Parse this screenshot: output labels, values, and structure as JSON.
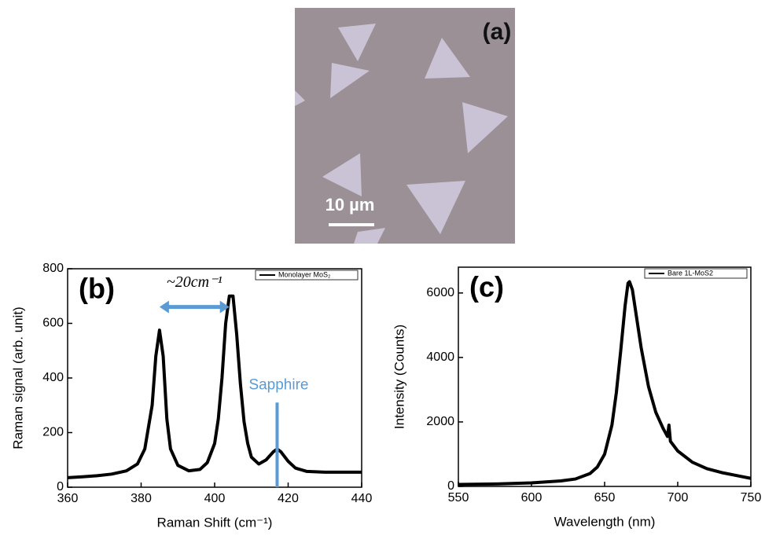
{
  "panel_a": {
    "label": "(a)",
    "scale_bar": "10 µm"
  },
  "chart_data": [
    {
      "type": "line",
      "panel_label": "(b)",
      "x_label": "Raman Shift (cm⁻¹)",
      "y_label": "Raman signal (arb. unit)",
      "xlim": [
        360,
        440
      ],
      "xticks": [
        360,
        380,
        400,
        420,
        440
      ],
      "ylim": [
        0,
        800
      ],
      "yticks": [
        0,
        200,
        400,
        600,
        800
      ],
      "legend": "upper right",
      "series": [
        {
          "name": "Monolayer MoS₂",
          "color": "#000000",
          "x": [
            360,
            364,
            368,
            372,
            376,
            379,
            381,
            383,
            384,
            385,
            386,
            387,
            388,
            390,
            393,
            396,
            398,
            400,
            401,
            402,
            403,
            404,
            405,
            406,
            407,
            408,
            409,
            410,
            412,
            414,
            416,
            417,
            418,
            420,
            422,
            425,
            430,
            435,
            440
          ],
          "values": [
            35,
            38,
            42,
            48,
            60,
            85,
            140,
            300,
            480,
            575,
            480,
            250,
            140,
            80,
            60,
            65,
            90,
            160,
            250,
            400,
            600,
            700,
            700,
            560,
            380,
            240,
            160,
            110,
            85,
            100,
            130,
            140,
            130,
            95,
            70,
            58,
            55,
            55,
            55
          ]
        }
      ],
      "arrow": {
        "text": "~20cm⁻¹",
        "from": 385,
        "to": 404,
        "y": 660,
        "color": "#5b9bd5"
      },
      "marker": {
        "text": "Sapphire",
        "x": 417,
        "top": 310,
        "color": "#5b9bd5"
      }
    },
    {
      "type": "line",
      "panel_label": "(c)",
      "x_label": "Wavelength (nm)",
      "y_label": "Intensity (Counts)",
      "xlim": [
        550,
        750
      ],
      "xticks": [
        550,
        600,
        650,
        700,
        750
      ],
      "ylim": [
        0,
        6800
      ],
      "yticks": [
        0,
        2000,
        4000,
        6000
      ],
      "legend": "upper right",
      "series": [
        {
          "name": "Bare 1L-MoS2",
          "color": "#000000",
          "x": [
            550,
            575,
            600,
            620,
            630,
            640,
            645,
            650,
            655,
            658,
            661,
            664,
            666,
            667,
            669,
            672,
            675,
            680,
            685,
            690,
            693,
            694,
            695,
            700,
            710,
            720,
            730,
            740,
            750
          ],
          "values": [
            60,
            75,
            110,
            170,
            230,
            400,
            600,
            1000,
            1900,
            2900,
            4200,
            5600,
            6300,
            6350,
            6100,
            5200,
            4300,
            3100,
            2300,
            1800,
            1550,
            1900,
            1400,
            1100,
            750,
            550,
            430,
            340,
            250
          ]
        }
      ]
    }
  ]
}
